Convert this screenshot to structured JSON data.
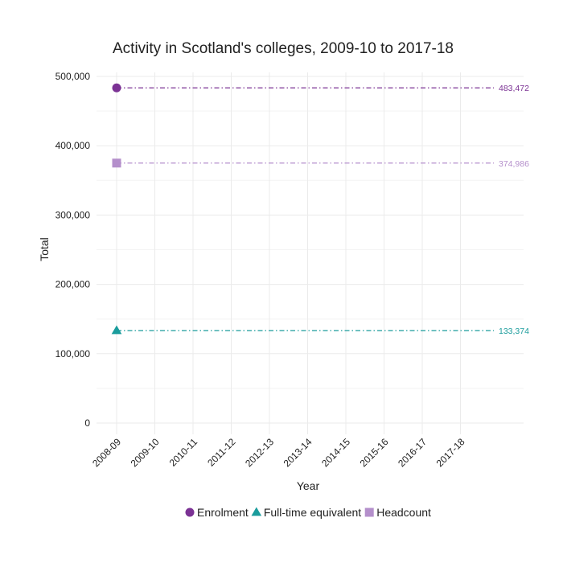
{
  "chart_data": {
    "type": "line",
    "title": "Activity in Scotland's colleges, 2009-10 to 2017-18",
    "xlabel": "Year",
    "ylabel": "Total",
    "categories": [
      "2008-09",
      "2009-10",
      "2010-11",
      "2011-12",
      "2012-13",
      "2013-14",
      "2014-15",
      "2015-16",
      "2016-17",
      "2017-18"
    ],
    "ylim": [
      0,
      500000
    ],
    "yticks": [
      0,
      100000,
      200000,
      300000,
      400000,
      500000
    ],
    "ytick_labels": [
      "0",
      "100,000",
      "200,000",
      "300,000",
      "400,000",
      "500,000"
    ],
    "grid": true,
    "legend_position": "bottom",
    "series": [
      {
        "name": "Enrolment",
        "color": "#7b3294",
        "marker": "circle",
        "x": "2008-09",
        "value": 483472,
        "label": "483,472"
      },
      {
        "name": "Full-time equivalent",
        "color": "#1a9c9c",
        "marker": "triangle",
        "x": "2008-09",
        "value": 133374,
        "label": "133,374"
      },
      {
        "name": "Headcount",
        "color": "#b48fcb",
        "marker": "square",
        "x": "2008-09",
        "value": 374986,
        "label": "374,986"
      }
    ]
  }
}
